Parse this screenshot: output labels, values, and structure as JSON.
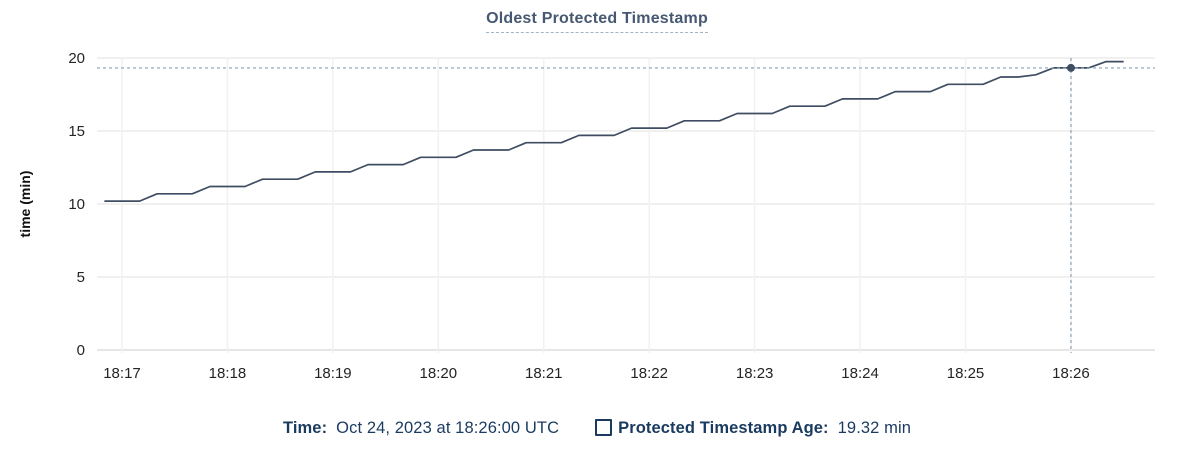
{
  "title": "Oldest Protected Timestamp",
  "tooltip": {
    "time_label": "Time:",
    "time_value": "Oct 24, 2023 at 18:26:00 UTC",
    "series_label": "Protected Timestamp Age:",
    "series_value": "19.32 min"
  },
  "colors": {
    "title": "#475872",
    "legend_text": "#1a3a5f",
    "line": "#3f4d63",
    "crosshair": "#8ba3b4",
    "grid_h": "#ebebeb",
    "grid_h_zero": "#dedede",
    "grid_v": "#f1f1f1",
    "tick_text": "#242424"
  },
  "chart_data": {
    "type": "line",
    "title": "Oldest Protected Timestamp",
    "xlabel": "",
    "ylabel": "time (min)",
    "ylim": [
      0,
      20
    ],
    "y_ticks": [
      0,
      5,
      10,
      15,
      20
    ],
    "x_ticks": [
      "18:17",
      "18:18",
      "18:19",
      "18:20",
      "18:21",
      "18:22",
      "18:23",
      "18:24",
      "18:25",
      "18:26"
    ],
    "grid": true,
    "legend_position": "bottom",
    "series": [
      {
        "name": "Protected Timestamp Age",
        "unit": "min",
        "color": "#3f4d63",
        "points": [
          [
            "18:16:50",
            10.2
          ],
          [
            "18:17:00",
            10.2
          ],
          [
            "18:17:10",
            10.2
          ],
          [
            "18:17:20",
            10.7
          ],
          [
            "18:17:30",
            10.7
          ],
          [
            "18:17:40",
            10.7
          ],
          [
            "18:17:50",
            11.2
          ],
          [
            "18:18:00",
            11.2
          ],
          [
            "18:18:10",
            11.2
          ],
          [
            "18:18:20",
            11.7
          ],
          [
            "18:18:30",
            11.7
          ],
          [
            "18:18:40",
            11.7
          ],
          [
            "18:18:50",
            12.2
          ],
          [
            "18:19:00",
            12.2
          ],
          [
            "18:19:10",
            12.2
          ],
          [
            "18:19:20",
            12.7
          ],
          [
            "18:19:30",
            12.7
          ],
          [
            "18:19:40",
            12.7
          ],
          [
            "18:19:50",
            13.2
          ],
          [
            "18:20:00",
            13.2
          ],
          [
            "18:20:10",
            13.2
          ],
          [
            "18:20:20",
            13.7
          ],
          [
            "18:20:30",
            13.7
          ],
          [
            "18:20:40",
            13.7
          ],
          [
            "18:20:50",
            14.2
          ],
          [
            "18:21:00",
            14.2
          ],
          [
            "18:21:10",
            14.2
          ],
          [
            "18:21:20",
            14.7
          ],
          [
            "18:21:30",
            14.7
          ],
          [
            "18:21:40",
            14.7
          ],
          [
            "18:21:50",
            15.2
          ],
          [
            "18:22:00",
            15.2
          ],
          [
            "18:22:10",
            15.2
          ],
          [
            "18:22:20",
            15.7
          ],
          [
            "18:22:30",
            15.7
          ],
          [
            "18:22:40",
            15.7
          ],
          [
            "18:22:50",
            16.2
          ],
          [
            "18:23:00",
            16.2
          ],
          [
            "18:23:10",
            16.2
          ],
          [
            "18:23:20",
            16.7
          ],
          [
            "18:23:30",
            16.7
          ],
          [
            "18:23:40",
            16.7
          ],
          [
            "18:23:50",
            17.2
          ],
          [
            "18:24:00",
            17.2
          ],
          [
            "18:24:10",
            17.2
          ],
          [
            "18:24:20",
            17.7
          ],
          [
            "18:24:30",
            17.7
          ],
          [
            "18:24:40",
            17.7
          ],
          [
            "18:24:50",
            18.2
          ],
          [
            "18:25:00",
            18.2
          ],
          [
            "18:25:10",
            18.2
          ],
          [
            "18:25:20",
            18.7
          ],
          [
            "18:25:30",
            18.7
          ],
          [
            "18:25:40",
            18.85
          ],
          [
            "18:25:50",
            19.32
          ],
          [
            "18:26:00",
            19.32
          ],
          [
            "18:26:10",
            19.32
          ],
          [
            "18:26:20",
            19.75
          ],
          [
            "18:26:30",
            19.75
          ]
        ]
      }
    ],
    "highlight_point": {
      "x": "18:26:00",
      "y": 19.32
    }
  }
}
